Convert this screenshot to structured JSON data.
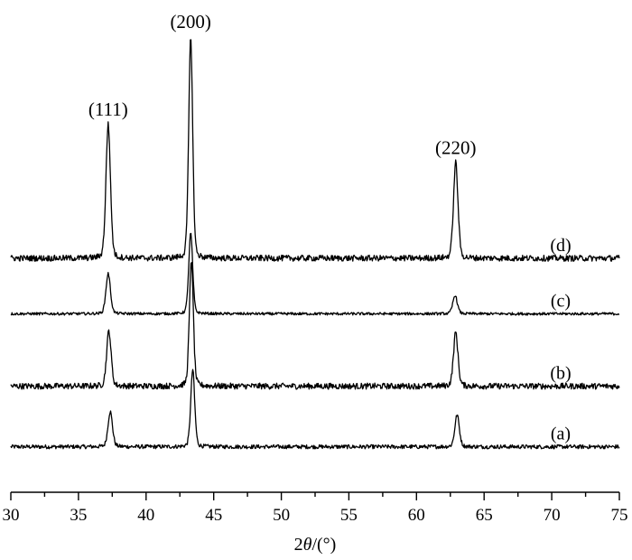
{
  "chart_data": {
    "type": "line",
    "title": "",
    "xlabel": "2θ/(°)",
    "ylabel": "",
    "xlim": [
      30,
      75
    ],
    "x_ticks": [
      30,
      35,
      40,
      45,
      50,
      55,
      60,
      65,
      70,
      75
    ],
    "y_ticks_shown": false,
    "grid": false,
    "peak_labels": [
      {
        "text": "(111)",
        "x": 37.2
      },
      {
        "text": "(200)",
        "x": 43.3
      },
      {
        "text": "(220)",
        "x": 62.9
      }
    ],
    "series": [
      {
        "name": "(a)",
        "offset": 0,
        "noise": 0.06,
        "peaks": [
          {
            "x": 37.35,
            "height": 1.05,
            "width": 0.17
          },
          {
            "x": 43.45,
            "height": 2.3,
            "width": 0.15
          },
          {
            "x": 63.0,
            "height": 0.95,
            "width": 0.17
          }
        ]
      },
      {
        "name": "(b)",
        "offset": 1.8,
        "noise": 0.09,
        "peaks": [
          {
            "x": 37.25,
            "height": 1.65,
            "width": 0.17
          },
          {
            "x": 43.35,
            "height": 3.75,
            "width": 0.15
          },
          {
            "x": 62.9,
            "height": 1.6,
            "width": 0.17
          }
        ]
      },
      {
        "name": "(c)",
        "offset": 3.95,
        "noise": 0.04,
        "peaks": [
          {
            "x": 37.2,
            "height": 1.2,
            "width": 0.17
          },
          {
            "x": 43.3,
            "height": 2.4,
            "width": 0.15
          },
          {
            "x": 62.85,
            "height": 0.55,
            "width": 0.17
          }
        ]
      },
      {
        "name": "(d)",
        "offset": 5.6,
        "noise": 0.09,
        "peaks": [
          {
            "x": 37.2,
            "height": 4.0,
            "width": 0.17
          },
          {
            "x": 43.3,
            "height": 6.6,
            "width": 0.15
          },
          {
            "x": 62.9,
            "height": 2.85,
            "width": 0.17
          }
        ]
      }
    ],
    "ylim": [
      -0.6,
      12.6
    ]
  }
}
